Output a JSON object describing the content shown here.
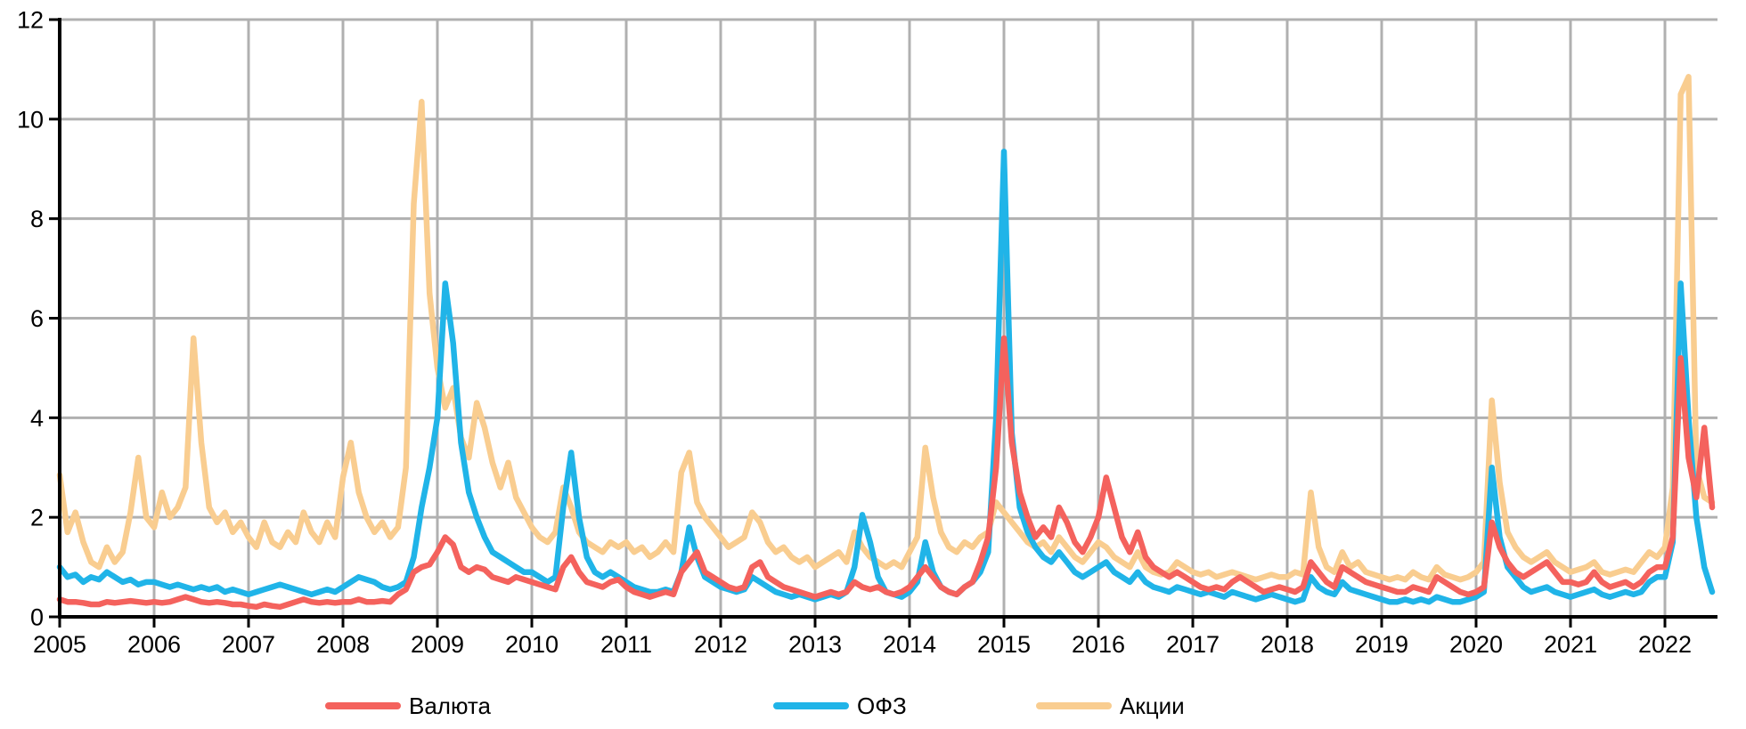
{
  "chart_data": {
    "type": "line",
    "title": "",
    "xlabel": "",
    "ylabel": "",
    "grid": true,
    "legend_position": "bottom",
    "x_axis": {
      "tick_labels": [
        "2005",
        "2006",
        "2007",
        "2008",
        "2009",
        "2010",
        "2011",
        "2012",
        "2013",
        "2014",
        "2015",
        "2016",
        "2017",
        "2018",
        "2019",
        "2020",
        "2021",
        "2022"
      ],
      "range": [
        2005,
        2022.57
      ]
    },
    "y_axis": {
      "tick_values": [
        0,
        2,
        4,
        6,
        8,
        10,
        12
      ],
      "range": [
        0,
        12
      ]
    },
    "x_start": 2005.0,
    "x_step_years": 0.0833333,
    "point_unit": "monthly",
    "series": [
      {
        "name": "Валюта",
        "color": "#F4625D",
        "values": [
          0.35,
          0.3,
          0.3,
          0.28,
          0.25,
          0.25,
          0.3,
          0.28,
          0.3,
          0.32,
          0.3,
          0.28,
          0.3,
          0.28,
          0.3,
          0.35,
          0.4,
          0.35,
          0.3,
          0.28,
          0.3,
          0.28,
          0.25,
          0.25,
          0.22,
          0.2,
          0.25,
          0.22,
          0.2,
          0.25,
          0.3,
          0.35,
          0.3,
          0.28,
          0.3,
          0.28,
          0.3,
          0.3,
          0.35,
          0.3,
          0.3,
          0.32,
          0.3,
          0.45,
          0.55,
          0.9,
          1.0,
          1.05,
          1.3,
          1.6,
          1.45,
          1.0,
          0.9,
          1.0,
          0.95,
          0.8,
          0.75,
          0.7,
          0.8,
          0.75,
          0.7,
          0.65,
          0.6,
          0.55,
          1.0,
          1.2,
          0.9,
          0.7,
          0.65,
          0.6,
          0.7,
          0.75,
          0.6,
          0.5,
          0.45,
          0.4,
          0.45,
          0.5,
          0.45,
          0.9,
          1.1,
          1.3,
          0.9,
          0.8,
          0.7,
          0.6,
          0.55,
          0.6,
          1.0,
          1.1,
          0.8,
          0.7,
          0.6,
          0.55,
          0.5,
          0.45,
          0.4,
          0.45,
          0.5,
          0.45,
          0.5,
          0.7,
          0.6,
          0.55,
          0.6,
          0.5,
          0.45,
          0.5,
          0.6,
          0.8,
          1.0,
          0.8,
          0.6,
          0.5,
          0.45,
          0.6,
          0.7,
          1.1,
          1.6,
          3.0,
          5.6,
          3.5,
          2.5,
          2.0,
          1.6,
          1.8,
          1.6,
          2.2,
          1.9,
          1.5,
          1.3,
          1.6,
          2.0,
          2.8,
          2.2,
          1.6,
          1.3,
          1.7,
          1.2,
          1.0,
          0.9,
          0.8,
          0.9,
          0.8,
          0.7,
          0.6,
          0.55,
          0.6,
          0.55,
          0.7,
          0.8,
          0.7,
          0.6,
          0.5,
          0.55,
          0.6,
          0.55,
          0.5,
          0.6,
          1.1,
          0.9,
          0.7,
          0.6,
          1.0,
          0.9,
          0.8,
          0.7,
          0.65,
          0.6,
          0.55,
          0.5,
          0.5,
          0.6,
          0.55,
          0.5,
          0.8,
          0.7,
          0.6,
          0.5,
          0.45,
          0.5,
          0.6,
          1.9,
          1.4,
          1.1,
          0.9,
          0.8,
          0.9,
          1.0,
          1.1,
          0.9,
          0.7,
          0.7,
          0.65,
          0.7,
          0.9,
          0.7,
          0.6,
          0.65,
          0.7,
          0.6,
          0.7,
          0.9,
          1.0,
          1.0,
          1.6,
          5.2,
          3.2,
          2.4,
          3.8,
          2.2
        ]
      },
      {
        "name": "ОФЗ",
        "color": "#20B4E8",
        "values": [
          1.0,
          0.8,
          0.85,
          0.7,
          0.8,
          0.75,
          0.9,
          0.8,
          0.7,
          0.75,
          0.65,
          0.7,
          0.7,
          0.65,
          0.6,
          0.65,
          0.6,
          0.55,
          0.6,
          0.55,
          0.6,
          0.5,
          0.55,
          0.5,
          0.45,
          0.5,
          0.55,
          0.6,
          0.65,
          0.6,
          0.55,
          0.5,
          0.45,
          0.5,
          0.55,
          0.5,
          0.6,
          0.7,
          0.8,
          0.75,
          0.7,
          0.6,
          0.55,
          0.6,
          0.7,
          1.2,
          2.2,
          3.0,
          4.0,
          6.7,
          5.5,
          3.5,
          2.5,
          2.0,
          1.6,
          1.3,
          1.2,
          1.1,
          1.0,
          0.9,
          0.9,
          0.8,
          0.7,
          0.8,
          2.2,
          3.3,
          2.0,
          1.2,
          0.9,
          0.8,
          0.9,
          0.8,
          0.7,
          0.6,
          0.55,
          0.5,
          0.5,
          0.55,
          0.5,
          0.9,
          1.8,
          1.2,
          0.8,
          0.7,
          0.6,
          0.55,
          0.5,
          0.55,
          0.8,
          0.7,
          0.6,
          0.5,
          0.45,
          0.4,
          0.45,
          0.4,
          0.35,
          0.4,
          0.45,
          0.4,
          0.5,
          1.0,
          2.05,
          1.5,
          0.8,
          0.5,
          0.45,
          0.4,
          0.5,
          0.7,
          1.5,
          0.9,
          0.6,
          0.5,
          0.45,
          0.6,
          0.7,
          0.9,
          1.3,
          4.0,
          9.35,
          3.7,
          2.2,
          1.7,
          1.4,
          1.2,
          1.1,
          1.3,
          1.1,
          0.9,
          0.8,
          0.9,
          1.0,
          1.1,
          0.9,
          0.8,
          0.7,
          0.9,
          0.7,
          0.6,
          0.55,
          0.5,
          0.6,
          0.55,
          0.5,
          0.45,
          0.5,
          0.45,
          0.4,
          0.5,
          0.45,
          0.4,
          0.35,
          0.4,
          0.45,
          0.4,
          0.35,
          0.3,
          0.35,
          0.8,
          0.6,
          0.5,
          0.45,
          0.7,
          0.55,
          0.5,
          0.45,
          0.4,
          0.35,
          0.3,
          0.3,
          0.35,
          0.3,
          0.35,
          0.3,
          0.4,
          0.35,
          0.3,
          0.3,
          0.35,
          0.4,
          0.5,
          3.0,
          1.6,
          1.0,
          0.8,
          0.6,
          0.5,
          0.55,
          0.6,
          0.5,
          0.45,
          0.4,
          0.45,
          0.5,
          0.55,
          0.45,
          0.4,
          0.45,
          0.5,
          0.45,
          0.5,
          0.7,
          0.8,
          0.8,
          1.5,
          6.7,
          4.0,
          2.0,
          1.0,
          0.5
        ]
      },
      {
        "name": "Акции",
        "color": "#F9CD90",
        "values": [
          2.85,
          1.7,
          2.1,
          1.5,
          1.1,
          1.0,
          1.4,
          1.1,
          1.3,
          2.1,
          3.2,
          2.0,
          1.8,
          2.5,
          2.0,
          2.2,
          2.6,
          5.6,
          3.5,
          2.2,
          1.9,
          2.1,
          1.7,
          1.9,
          1.6,
          1.4,
          1.9,
          1.5,
          1.4,
          1.7,
          1.5,
          2.1,
          1.7,
          1.5,
          1.9,
          1.6,
          2.8,
          3.5,
          2.5,
          2.0,
          1.7,
          1.9,
          1.6,
          1.8,
          3.0,
          8.3,
          10.35,
          6.5,
          5.0,
          4.2,
          4.6,
          3.6,
          3.2,
          4.3,
          3.8,
          3.1,
          2.6,
          3.1,
          2.4,
          2.1,
          1.8,
          1.6,
          1.5,
          1.7,
          2.6,
          2.2,
          1.7,
          1.5,
          1.4,
          1.3,
          1.5,
          1.4,
          1.5,
          1.3,
          1.4,
          1.2,
          1.3,
          1.5,
          1.3,
          2.9,
          3.3,
          2.3,
          2.0,
          1.8,
          1.6,
          1.4,
          1.5,
          1.6,
          2.1,
          1.9,
          1.5,
          1.3,
          1.4,
          1.2,
          1.1,
          1.2,
          1.0,
          1.1,
          1.2,
          1.3,
          1.1,
          1.7,
          1.4,
          1.2,
          1.1,
          1.0,
          1.1,
          1.0,
          1.3,
          1.6,
          3.4,
          2.4,
          1.7,
          1.4,
          1.3,
          1.5,
          1.4,
          1.6,
          1.7,
          2.3,
          2.1,
          1.9,
          1.7,
          1.5,
          1.4,
          1.5,
          1.3,
          1.6,
          1.4,
          1.2,
          1.1,
          1.3,
          1.5,
          1.4,
          1.2,
          1.1,
          1.0,
          1.3,
          1.0,
          0.9,
          0.85,
          0.9,
          1.1,
          1.0,
          0.9,
          0.85,
          0.9,
          0.8,
          0.85,
          0.9,
          0.85,
          0.8,
          0.75,
          0.8,
          0.85,
          0.8,
          0.8,
          0.9,
          0.85,
          2.5,
          1.4,
          1.0,
          0.9,
          1.3,
          1.0,
          1.1,
          0.9,
          0.85,
          0.8,
          0.75,
          0.8,
          0.75,
          0.9,
          0.8,
          0.75,
          1.0,
          0.85,
          0.8,
          0.75,
          0.8,
          0.9,
          1.1,
          4.35,
          2.7,
          1.7,
          1.4,
          1.2,
          1.1,
          1.2,
          1.3,
          1.1,
          1.0,
          0.9,
          0.95,
          1.0,
          1.1,
          0.9,
          0.85,
          0.9,
          0.95,
          0.9,
          1.1,
          1.3,
          1.2,
          1.4,
          2.6,
          10.5,
          10.85,
          3.0,
          2.4,
          2.3
        ]
      }
    ],
    "draw_order": [
      2,
      1,
      0
    ]
  },
  "colors": {
    "grid": "#B0B0B0",
    "axis": "#000000",
    "text": "#000000",
    "background": "#FFFFFF"
  }
}
